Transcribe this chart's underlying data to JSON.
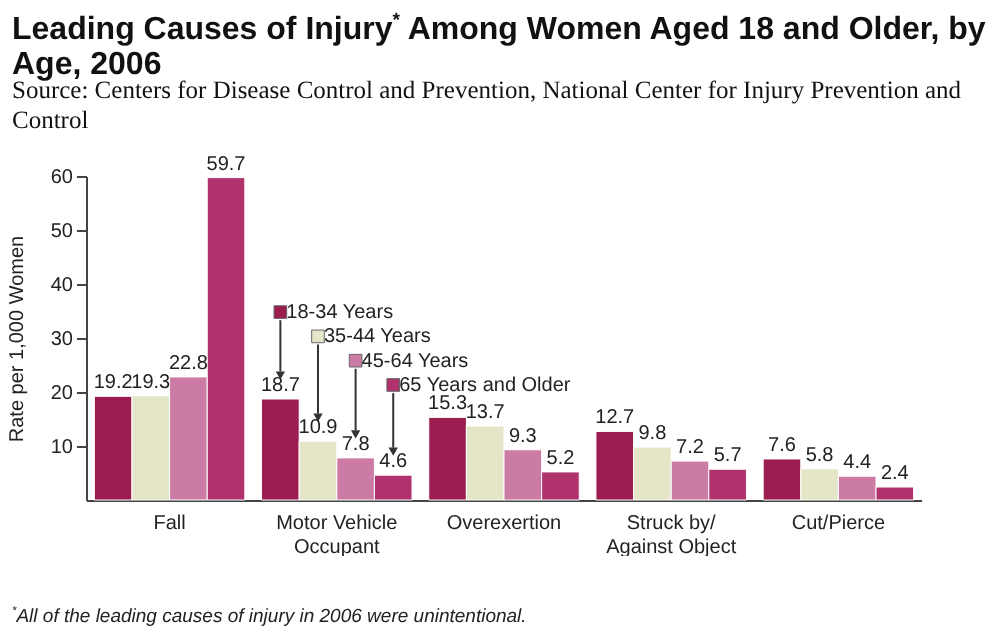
{
  "chart_data": {
    "type": "bar",
    "title": "Leading Causes of Injury$^{*}$ Among Women Aged 18 and Older, by Age, 2006",
    "ylabel": "Rate per 1,000 Women",
    "annotations": [
      "Source: Centers for Disease Control and Prevention, National Center for Injury Prevention and Control",
      "$^{*}$All of the leading causes of injury in 2006 were unintentional."
    ],
    "categories": [
      "Fall",
      "Motor Vehicle Occupant",
      "Overexertion",
      "Struck by/Against Object",
      "Cut/Pierce"
    ],
    "series": [
      {
        "name": "18-34 Years",
        "color": "#9b1c4e",
        "values": [
          19.2,
          18.7,
          15.3,
          12.7,
          7.6
        ]
      },
      {
        "name": "35-44 Years",
        "color": "#e5e6c8",
        "values": [
          19.3,
          10.9,
          13.7,
          9.8,
          5.8
        ]
      },
      {
        "name": "45-64 Years",
        "color": "#cc7ca4",
        "values": [
          22.8,
          7.8,
          9.3,
          7.2,
          4.4
        ]
      },
      {
        "name": "65 Years and Older",
        "color": "#b0336e",
        "values": [
          59.7,
          4.6,
          5.2,
          5.7,
          2.4
        ]
      }
    ],
    "ylim": [
      0,
      60
    ],
    "yticks": [
      10,
      20,
      30,
      40,
      50,
      60
    ],
    "data_labels": true,
    "legend": "left"
  }
}
